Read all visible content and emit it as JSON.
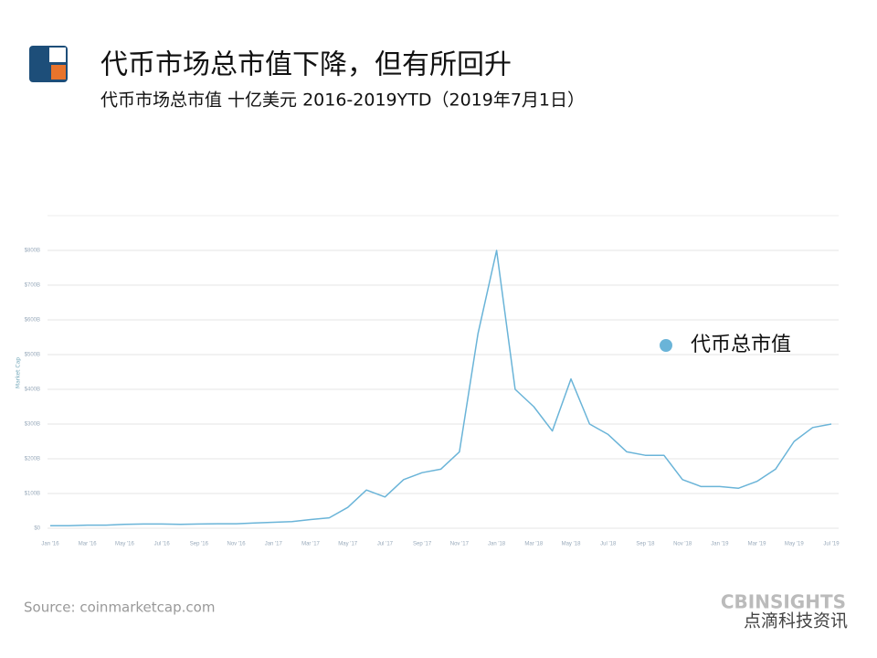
{
  "slide": {
    "title": "代币市场总市值下降，但有所回升",
    "subtitle": "代币市场总市值 十亿美元 2016-2019YTD（2019年7月1日）"
  },
  "chart_data": {
    "type": "line",
    "y_label": "Market Cap",
    "categories": [
      "Jan '16",
      null,
      "Mar '16",
      null,
      "May '16",
      null,
      "Jul '16",
      null,
      "Sep '16",
      null,
      "Nov '16",
      null,
      "Jan '17",
      null,
      "Mar '17",
      null,
      "May '17",
      null,
      "Jul '17",
      null,
      "Sep '17",
      null,
      "Nov '17",
      null,
      "Jan '18",
      null,
      "Mar '18",
      null,
      "May '18",
      null,
      "Jul '18",
      null,
      "Sep '18",
      null,
      "Nov '18",
      null,
      "Jan '19",
      null,
      "Mar '19",
      null,
      "May '19",
      null,
      "Jul '19"
    ],
    "series": [
      {
        "name": "代币总市值",
        "color": "#6ab4d8",
        "values": [
          7,
          7,
          9,
          9,
          11,
          12,
          12,
          11,
          12,
          13,
          13,
          15,
          17,
          19,
          25,
          30,
          60,
          110,
          90,
          140,
          160,
          170,
          220,
          560,
          800,
          400,
          350,
          280,
          430,
          300,
          270,
          220,
          210,
          210,
          140,
          120,
          120,
          115,
          135,
          170,
          250,
          290,
          300
        ]
      }
    ],
    "ylim": [
      0,
      900
    ],
    "yticks": [
      {
        "value": 0,
        "label": "$0"
      },
      {
        "value": 100,
        "label": "$100B"
      },
      {
        "value": 200,
        "label": "$200B"
      },
      {
        "value": 300,
        "label": "$300B"
      },
      {
        "value": 400,
        "label": "$400B"
      },
      {
        "value": 500,
        "label": "$500B"
      },
      {
        "value": 600,
        "label": "$600B"
      },
      {
        "value": 700,
        "label": "$700B"
      },
      {
        "value": 800,
        "label": "$800B"
      }
    ],
    "grid": true
  },
  "footer": {
    "source": "Source: coinmarketcap.com",
    "brand": "CBINSIGHTS",
    "watermark": "点滴科技资讯"
  }
}
